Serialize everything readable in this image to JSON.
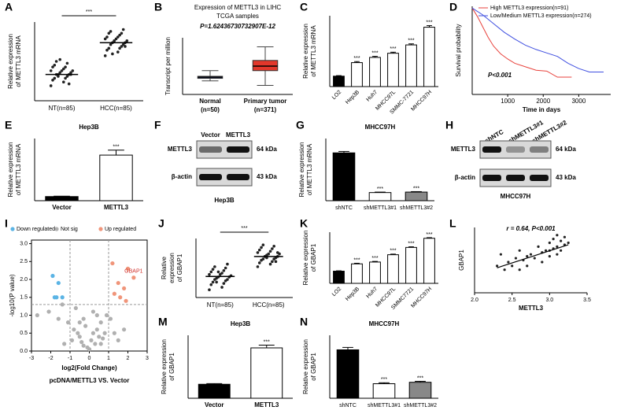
{
  "chart_data": [
    {
      "panel": "A",
      "type": "dot",
      "ylabel": [
        "Relative expression",
        "of METTL3 mRNA"
      ],
      "categories": [
        "NT(n=85)",
        "HCC(n=85)"
      ],
      "groups": [
        [
          1.7,
          1.8,
          1.85,
          1.9,
          1.9,
          1.95,
          2.0,
          2.0,
          2.0,
          2.05,
          2.05,
          2.1,
          2.1,
          2.1,
          2.15,
          2.2,
          2.2,
          2.25,
          2.3,
          2.35,
          1.75,
          1.95,
          2.0,
          2.4
        ],
        [
          2.5,
          2.6,
          2.65,
          2.7,
          2.7,
          2.75,
          2.8,
          2.8,
          2.85,
          2.85,
          2.9,
          2.9,
          2.95,
          2.95,
          3.0,
          3.0,
          3.05,
          3.1,
          3.1,
          3.15,
          3.2,
          2.55,
          2.75,
          2.9
        ]
      ],
      "means": [
        2.0,
        2.85
      ],
      "ylim": [
        1.3,
        3.4
      ],
      "sig_label": "***"
    },
    {
      "panel": "B",
      "type": "box",
      "title": "Expression of METTL3 in LIHC",
      "subtitle": "TCGA samples",
      "annotation": "P=1.62436730732907E-12",
      "ylabel": "Transcript per million",
      "categories": [
        "Normal",
        "Primary tumor"
      ],
      "category_notes": [
        "(n=50)",
        "(n=371)"
      ],
      "colors": [
        "#3b58c4",
        "#e2372b"
      ],
      "min": [
        6,
        4
      ],
      "q1": [
        7.1,
        10.5
      ],
      "median": [
        7.6,
        12.5
      ],
      "q3": [
        8,
        15
      ],
      "max": [
        10.5,
        21
      ],
      "ylim": [
        0,
        25
      ]
    },
    {
      "panel": "C",
      "type": "bar",
      "ylabel": [
        "Relative expression",
        "of METTL3 mRNA"
      ],
      "categories": [
        "LO2",
        "Hep3B",
        "Huh7",
        "MHCC97L",
        "SMMC-7721",
        "MHCC97H"
      ],
      "values": [
        1,
        2.3,
        2.8,
        3.2,
        4,
        5.7
      ],
      "errors": [
        0.05,
        0.1,
        0.1,
        0.1,
        0.1,
        0.15
      ],
      "colors": [
        "#000000",
        "#ffffff",
        "#ffffff",
        "#ffffff",
        "#ffffff",
        "#ffffff"
      ],
      "sig_labels": [
        null,
        "***",
        "***",
        "***",
        "***",
        "***"
      ],
      "ylim": [
        0,
        6.8
      ],
      "rotate_labels": true
    },
    {
      "panel": "D",
      "type": "survival",
      "ylabel": "Survival probability",
      "xlabel": "Time in days",
      "annotation": "P<0.001",
      "series": [
        {
          "name": "High METTL3 expression(n=91)",
          "color": "#e8423c",
          "x": [
            0,
            150,
            300,
            450,
            600,
            800,
            1000,
            1200,
            1500,
            1800,
            2100,
            2400,
            2800
          ],
          "values": [
            1,
            0.9,
            0.78,
            0.66,
            0.56,
            0.47,
            0.41,
            0.36,
            0.32,
            0.28,
            0.27,
            0.2,
            0.2
          ]
        },
        {
          "name": "Low/Medium METTL3 expression(n=274)",
          "color": "#3f4fe0",
          "x": [
            0,
            300,
            600,
            900,
            1200,
            1500,
            1800,
            2100,
            2400,
            2700,
            3000,
            3300,
            3700
          ],
          "values": [
            1,
            0.92,
            0.82,
            0.72,
            0.64,
            0.57,
            0.52,
            0.48,
            0.44,
            0.36,
            0.3,
            0.26,
            0.26
          ]
        }
      ],
      "xlim": [
        0,
        3900
      ],
      "ylim": [
        0,
        1.02
      ],
      "xticks": [
        1000,
        2000,
        3000
      ]
    },
    {
      "panel": "E",
      "type": "bar",
      "title": "Hep3B",
      "ylabel": [
        "Relative expression",
        "of METTL3 mRNA"
      ],
      "categories": [
        "Vector",
        "METTL3"
      ],
      "values": [
        1,
        11
      ],
      "errors": [
        0.1,
        1.2
      ],
      "colors": [
        "#000000",
        "#ffffff"
      ],
      "sig_labels": [
        null,
        "***"
      ],
      "ylim": [
        0,
        15
      ]
    },
    {
      "panel": "F",
      "type": "blot",
      "lane_labels": [
        "Vector",
        "METTL3"
      ],
      "rows": [
        "METTL3",
        "β-actin"
      ],
      "sizes": [
        "64 kDa",
        "43 kDa"
      ],
      "footer": "Hep3B"
    },
    {
      "panel": "G",
      "type": "bar",
      "title": "MHCC97H",
      "ylabel": [
        "Relative expression",
        "of METTL3 mRNA"
      ],
      "categories": [
        "shNTC",
        "shMETTL3#1",
        "shMETTL3#2"
      ],
      "values": [
        1,
        0.17,
        0.18
      ],
      "errors": [
        0.03,
        0.01,
        0.01
      ],
      "colors": [
        "#000000",
        "#ffffff",
        "#888888"
      ],
      "sig_labels": [
        null,
        "***",
        "***"
      ],
      "ylim": [
        0,
        1.3
      ]
    },
    {
      "panel": "H",
      "type": "blot",
      "lane_labels": [
        "shNTC",
        "shMETTL3#1",
        "shMETTL3#2"
      ],
      "rows": [
        "METTL3",
        "β-actin"
      ],
      "sizes": [
        "64 kDa",
        "43 kDa"
      ],
      "footer": "MHCC97H"
    },
    {
      "panel": "I",
      "type": "volcano",
      "ylabel": "-log10(P value)",
      "xlabel": "log2(Fold Change)",
      "caption": "pcDNA/METTL3 VS. Vector",
      "point_label": "GBAP1",
      "series": [
        {
          "name": "Down regulated",
          "color": "#5bb4e5",
          "x": [
            -1.9,
            -1.6,
            -1.7,
            -1.4,
            -1.8
          ],
          "values": [
            2.1,
            1.9,
            1.5,
            1.5,
            1.5
          ]
        },
        {
          "name": "Not sig",
          "color": "#b0b0b0",
          "x": [
            -2.7,
            -2.1,
            -1.6,
            -1.3,
            -1.1,
            -0.9,
            -0.8,
            -0.6,
            -0.5,
            -0.4,
            -0.3,
            -0.2,
            -0.1,
            0,
            0.1,
            0.2,
            0.3,
            0.4,
            0.5,
            0.6,
            0.7,
            0.8,
            0.9,
            1.1,
            1.3,
            1.5,
            -0.7,
            -0.3,
            0.2,
            0.6,
            -1.4,
            1.8,
            -0.5,
            0.4
          ],
          "values": [
            1.0,
            1.1,
            0.9,
            0.2,
            0.8,
            0.3,
            0.6,
            0.5,
            0.4,
            0.25,
            0.15,
            0.7,
            0.1,
            0.05,
            0.3,
            0.5,
            0.2,
            0.6,
            0.4,
            0.8,
            0.35,
            0.5,
            1.0,
            0.9,
            0.5,
            0.3,
            1.2,
            0.9,
            1.1,
            0.2,
            1.3,
            0.6,
            0.8,
            1.0
          ]
        },
        {
          "name": "Up regulated",
          "color": "#f0957a",
          "x": [
            2.3,
            1.2,
            1.5,
            1.8,
            1.3,
            1.9,
            2.0,
            1.6
          ],
          "values": [
            2.05,
            2.45,
            1.9,
            1.75,
            1.6,
            1.4,
            2.3,
            1.5
          ]
        }
      ],
      "xlim": [
        -3,
        3
      ],
      "ylim": [
        0,
        3.1
      ],
      "xticks": [
        -3,
        -2,
        -1,
        0,
        1,
        2,
        3
      ],
      "yticks": [
        {
          "value": 0,
          "label": "0.0"
        },
        0.5,
        {
          "value": 1,
          "label": "1.0"
        },
        1.5,
        {
          "value": 2,
          "label": "2.0"
        },
        2.5,
        {
          "value": 3,
          "label": "3.0"
        }
      ],
      "x_lines": [
        -1,
        1
      ],
      "y_lines": [
        1.3
      ]
    },
    {
      "panel": "J",
      "type": "dot",
      "ylabel": [
        "Relative",
        "expression",
        "of GBAP1"
      ],
      "categories": [
        "NT(n=85)",
        "HCC(n=85)"
      ],
      "groups": [
        [
          0.3,
          0.4,
          0.5,
          0.55,
          0.6,
          0.65,
          0.7,
          0.7,
          0.75,
          0.8,
          0.8,
          0.85,
          0.9,
          0.9,
          0.95,
          1.0,
          1.05,
          1.1,
          1.15,
          1.2,
          1.3,
          0.6,
          0.8,
          1.0
        ],
        [
          1.2,
          1.3,
          1.35,
          1.4,
          1.45,
          1.5,
          1.5,
          1.55,
          1.6,
          1.6,
          1.65,
          1.7,
          1.7,
          1.75,
          1.8,
          1.85,
          1.9,
          1.95,
          2.0,
          2.05,
          1.4,
          1.6,
          1.75,
          1.55
        ]
      ],
      "means": [
        0.82,
        1.6
      ],
      "ylim": [
        0,
        2.3
      ],
      "sig_label": "***"
    },
    {
      "panel": "K",
      "type": "bar",
      "ylabel": [
        "Relative expression",
        "of GBAP1"
      ],
      "categories": [
        "LO2",
        "Hep3B",
        "Huh7",
        "MHCC97L",
        "SMMC7721",
        "MHCC97H"
      ],
      "values": [
        1,
        1.6,
        1.75,
        2.35,
        2.95,
        3.7
      ],
      "errors": [
        0.03,
        0.05,
        0.05,
        0.05,
        0.05,
        0.05
      ],
      "colors": [
        "#000000",
        "#ffffff",
        "#ffffff",
        "#ffffff",
        "#ffffff",
        "#ffffff"
      ],
      "sig_labels": [
        null,
        "***",
        "***",
        "***",
        "***",
        "***"
      ],
      "ylim": [
        0,
        4.2
      ],
      "rotate_labels": true
    },
    {
      "panel": "L",
      "type": "scatter",
      "annotation": "r = 0.64, P<0.001",
      "xlabel": "METTL3",
      "ylabel": "GBAP1",
      "x": [
        2.3,
        2.35,
        2.4,
        2.45,
        2.5,
        2.55,
        2.6,
        2.65,
        2.7,
        2.75,
        2.8,
        2.85,
        2.9,
        2.95,
        3.0,
        3.0,
        3.05,
        3.05,
        3.1,
        3.1,
        3.15,
        3.15,
        3.2,
        3.2,
        3.25,
        2.6,
        2.7,
        2.9,
        3.0,
        3.1
      ],
      "values": [
        1.3,
        1.6,
        1.2,
        1.4,
        1.3,
        1.5,
        1.7,
        1.45,
        1.3,
        1.6,
        1.5,
        1.8,
        1.65,
        1.7,
        1.55,
        1.9,
        1.75,
        2.0,
        1.8,
        1.6,
        1.95,
        1.7,
        2.05,
        1.85,
        1.9,
        1.2,
        1.55,
        1.4,
        1.7,
        2.1
      ],
      "fit": {
        "x": [
          2.3,
          3.25
        ],
        "values": [
          1.25,
          1.85
        ]
      },
      "xlim": [
        2.0,
        3.5
      ],
      "ylim": [
        0.6,
        2.3
      ],
      "xticks": [
        {
          "value": 2,
          "label": "2.0"
        },
        2.5,
        {
          "value": 3,
          "label": "3.0"
        },
        3.5
      ]
    },
    {
      "panel": "M",
      "type": "bar",
      "title": "Hep3B",
      "ylabel": [
        "Relative expression",
        "of GBAP1"
      ],
      "categories": [
        "Vector",
        "METTL3"
      ],
      "values": [
        1,
        3.6
      ],
      "errors": [
        0.05,
        0.2
      ],
      "colors": [
        "#000000",
        "#ffffff"
      ],
      "sig_labels": [
        null,
        "***"
      ],
      "ylim": [
        0,
        4.5
      ]
    },
    {
      "panel": "N",
      "type": "bar",
      "title": "MHCC97H",
      "ylabel": [
        "Relative expression",
        "of GBAP1"
      ],
      "categories": [
        "shNTC",
        "shMETTL3#1",
        "shMETTL3#2"
      ],
      "values": [
        1,
        0.3,
        0.33
      ],
      "errors": [
        0.05,
        0.02,
        0.02
      ],
      "colors": [
        "#000000",
        "#ffffff",
        "#888888"
      ],
      "sig_labels": [
        null,
        "***",
        "***"
      ],
      "ylim": [
        0,
        1.3
      ]
    }
  ]
}
